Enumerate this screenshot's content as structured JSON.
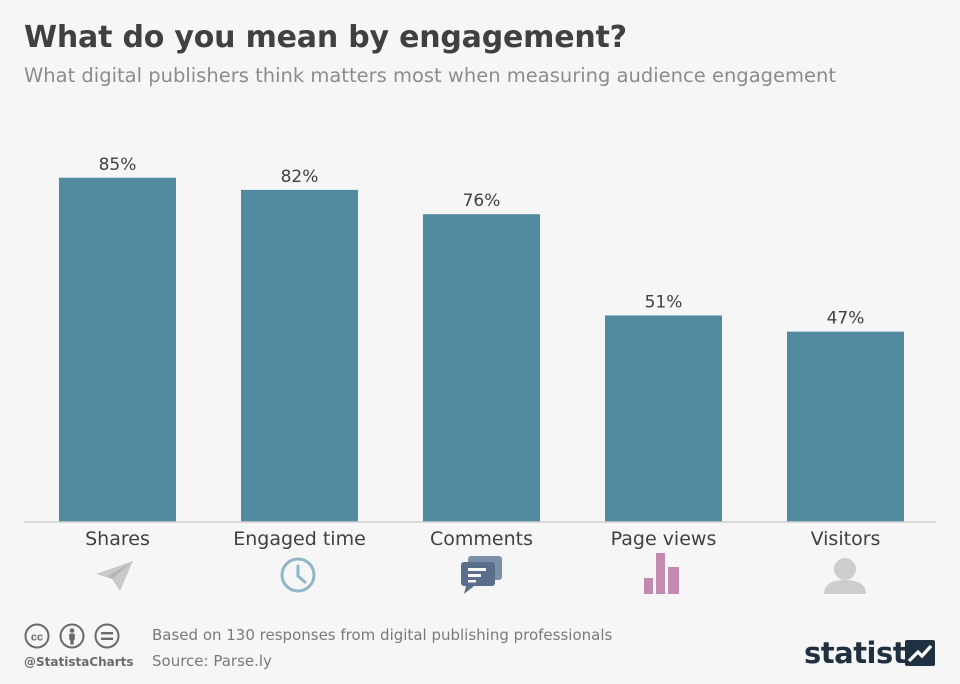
{
  "title": "What do you mean by engagement?",
  "subtitle": "What digital publishers think matters most when measuring audience engagement",
  "chart_data": {
    "type": "bar",
    "categories": [
      "Shares",
      "Engaged time",
      "Comments",
      "Page views",
      "Visitors"
    ],
    "values": [
      85,
      82,
      76,
      51,
      47
    ],
    "value_labels": [
      "85%",
      "82%",
      "76%",
      "51%",
      "47%"
    ],
    "ylim": [
      0,
      100
    ],
    "grid": false,
    "bar_color": "#528aa0",
    "icons": [
      "paper-plane-icon",
      "clock-icon",
      "chat-bubbles-icon",
      "bar-chart-icon",
      "person-icon"
    ]
  },
  "footer": {
    "handle": "@StatistaCharts",
    "note": "Based on 130 responses from digital publishing professionals",
    "source": "Source: Parse.ly",
    "brand": "statista",
    "license_icons": [
      "cc-icon",
      "by-person-icon",
      "nd-equals-icon"
    ]
  },
  "colors": {
    "background": "#f6f6f6",
    "bar": "#528aa0",
    "title": "#404040",
    "subtitle": "#8c8c8c",
    "icon_shares": "#c9c9c9",
    "icon_time": "#8fb5c6",
    "icon_comments": "#5a6d8a",
    "icon_pageviews": "#c28aae",
    "icon_visitors": "#cdcdcd"
  }
}
